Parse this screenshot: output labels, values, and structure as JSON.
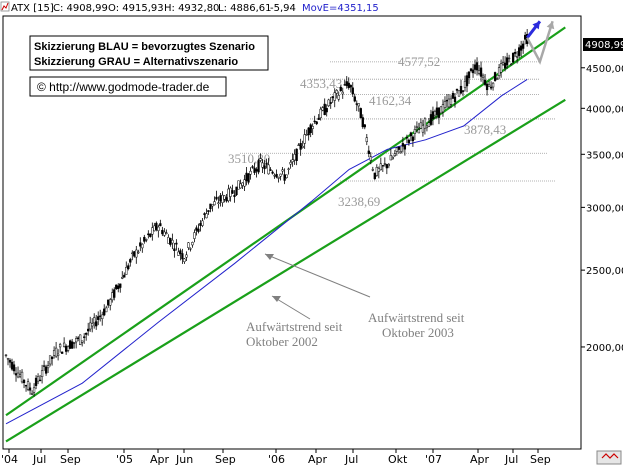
{
  "header": {
    "symbol": "ATX [15]",
    "close": "C: 4908,99",
    "open": "O: 4915,93",
    "high": "H: 4932,80",
    "low": "L: 4886,61",
    "change": "-5,94",
    "ma": "MovE=4351,15",
    "ma_color": "#2222cc"
  },
  "legend_box": {
    "line1": "Skizzierung BLAU = bevorzugtes Szenario",
    "line2": "Skizzierung GRAU = Alternativszenario"
  },
  "copyright": "© http://www.godmode-trader.de",
  "last_price_label": "4908,99",
  "annotations": {
    "trend_2003_line1": "Aufwärtstrend seit",
    "trend_2003_line2": "Oktober 2003",
    "trend_2002_line1": "Aufwärtstrend seit",
    "trend_2002_line2": "Oktober 2002"
  },
  "chart_data": {
    "type": "line",
    "title": "",
    "xlabel": "",
    "ylabel": "",
    "scale": "log",
    "ylim": [
      1500,
      5200
    ],
    "y_ticks": [
      "2000,00",
      "2500,00",
      "3000,00",
      "3500,00",
      "4000,00",
      "4500,00"
    ],
    "x_ticks": [
      "'04",
      "Jul",
      "Sep",
      "'05",
      "Apr",
      "Jun",
      "Sep",
      "'06",
      "Apr",
      "Jul",
      "Okt",
      "'07",
      "Apr",
      "Jul",
      "Sep"
    ],
    "levels": [
      {
        "value": 4577.52,
        "label": "4577,52"
      },
      {
        "value": 4353.43,
        "label": "4353,43"
      },
      {
        "value": 4162.34,
        "label": "4162,34"
      },
      {
        "value": 3878.43,
        "label": "3878,43"
      },
      {
        "value": 3510.8,
        "label": "3510,80"
      },
      {
        "value": 3238.69,
        "label": "3238,69"
      }
    ],
    "series": [
      {
        "name": "ATX",
        "color": "#000000",
        "style": "candles",
        "x": [
          "2004-01",
          "2004-03",
          "2004-05",
          "2004-07",
          "2004-09",
          "2004-11",
          "2005-01",
          "2005-03",
          "2005-05",
          "2005-07",
          "2005-09",
          "2005-11",
          "2006-01",
          "2006-03",
          "2006-04",
          "2006-05",
          "2006-06",
          "2006-07",
          "2006-08",
          "2006-09",
          "2006-11",
          "2007-01",
          "2007-02",
          "2007-03",
          "2007-04",
          "2007-05",
          "2007-06"
        ],
        "values": [
          1950,
          1760,
          1980,
          2050,
          2250,
          2600,
          2850,
          2600,
          3000,
          3150,
          3400,
          3280,
          3800,
          4150,
          4300,
          3900,
          3300,
          3400,
          3550,
          3700,
          3950,
          4250,
          4550,
          4250,
          4500,
          4650,
          4909
        ]
      },
      {
        "name": "MovE",
        "color": "#2222cc",
        "style": "line",
        "x": [
          "2004-01",
          "2004-07",
          "2005-01",
          "2005-07",
          "2006-01",
          "2006-04",
          "2006-07",
          "2006-10",
          "2007-01",
          "2007-04",
          "2007-06"
        ],
        "values": [
          1600,
          1800,
          2150,
          2550,
          3050,
          3350,
          3550,
          3650,
          3800,
          4150,
          4351
        ]
      },
      {
        "name": "Skizzierung BLAU",
        "color": "#2b2bdd",
        "style": "line",
        "x": [
          "2007-06",
          "2007-07"
        ],
        "values": [
          4909,
          5150
        ]
      },
      {
        "name": "Skizzierung GRAU",
        "color": "#a8a8a8",
        "style": "line",
        "x": [
          "2007-06",
          "2007-07",
          "2007-08"
        ],
        "values": [
          4909,
          4580,
          5150
        ]
      }
    ],
    "trendlines": [
      {
        "name": "Aufwärtstrend seit Oktober 2003",
        "color": "#1aa01a",
        "from": [
          "2004-01",
          1640
        ],
        "to": [
          "2007-09",
          5060
        ]
      },
      {
        "name": "Aufwärtstrend seit Oktober 2002",
        "color": "#1aa01a",
        "from": [
          "2004-01",
          1520
        ],
        "to": [
          "2007-09",
          4100
        ]
      }
    ]
  }
}
